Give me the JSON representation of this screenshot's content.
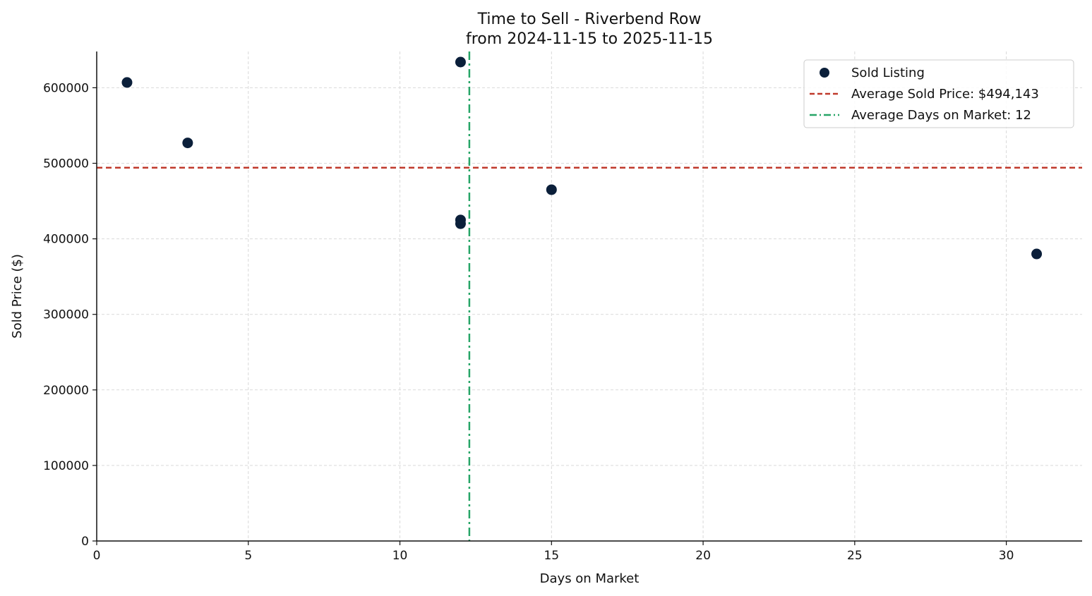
{
  "chart_data": {
    "type": "scatter",
    "title": "Time to Sell - Riverbend Row",
    "subtitle": "from 2024-11-15 to 2025-11-15",
    "xlabel": "Days on Market",
    "ylabel": "Sold Price ($)",
    "xlim": [
      0,
      32.5
    ],
    "ylim": [
      0,
      648000
    ],
    "xticks": [
      0,
      5,
      10,
      15,
      20,
      25,
      30
    ],
    "yticks": [
      0,
      100000,
      200000,
      300000,
      400000,
      500000,
      600000
    ],
    "grid": true,
    "legend_position": "top-right",
    "series": [
      {
        "name": "Sold Listing",
        "color": "#0b1f3a",
        "points": [
          {
            "x": 1,
            "y": 607000
          },
          {
            "x": 3,
            "y": 527000
          },
          {
            "x": 12,
            "y": 634000
          },
          {
            "x": 12,
            "y": 425000
          },
          {
            "x": 12,
            "y": 420000
          },
          {
            "x": 15,
            "y": 465000
          },
          {
            "x": 31,
            "y": 380000
          }
        ]
      }
    ],
    "reference_lines": [
      {
        "orientation": "horizontal",
        "value": 494143,
        "label": "Average Sold Price: $494,143",
        "color": "#c0392b",
        "style": "dashed"
      },
      {
        "orientation": "vertical",
        "value": 12.29,
        "label": "Average Days on Market: 12",
        "color": "#27a567",
        "style": "dashdot"
      }
    ]
  }
}
